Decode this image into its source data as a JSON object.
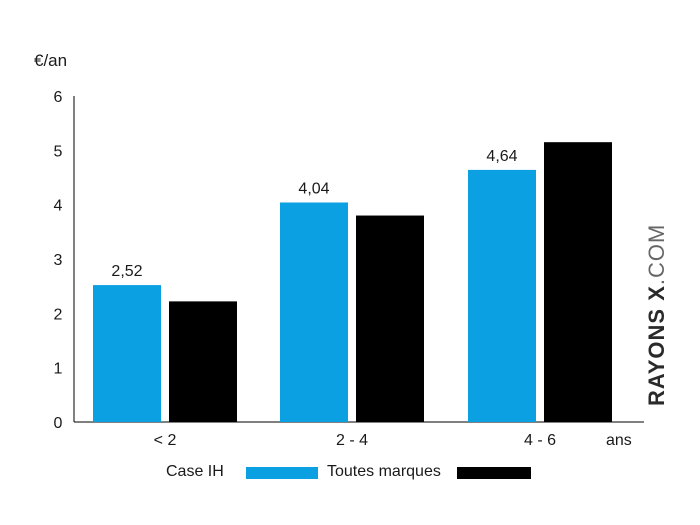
{
  "chart_data": {
    "type": "bar",
    "y_unit_label": "€/an",
    "x_unit_label": "ans",
    "categories": [
      "< 2",
      "2 - 4",
      "4 - 6"
    ],
    "series": [
      {
        "name": "Case IH",
        "color": "#0aa0e2",
        "values": [
          2.52,
          4.04,
          4.64
        ],
        "data_labels": [
          "2,52",
          "4,04",
          "4,64"
        ]
      },
      {
        "name": "Toutes marques",
        "color": "#000000",
        "values": [
          2.22,
          3.8,
          5.15
        ],
        "data_labels": [
          "",
          "",
          ""
        ]
      }
    ],
    "ylim": [
      0,
      6
    ],
    "yticks": [
      "0",
      "1",
      "2",
      "3",
      "4",
      "5",
      "6"
    ],
    "legend_position": "bottom",
    "grid": false
  },
  "watermark": {
    "bold": "RAYONS X",
    "light": ".COM"
  }
}
